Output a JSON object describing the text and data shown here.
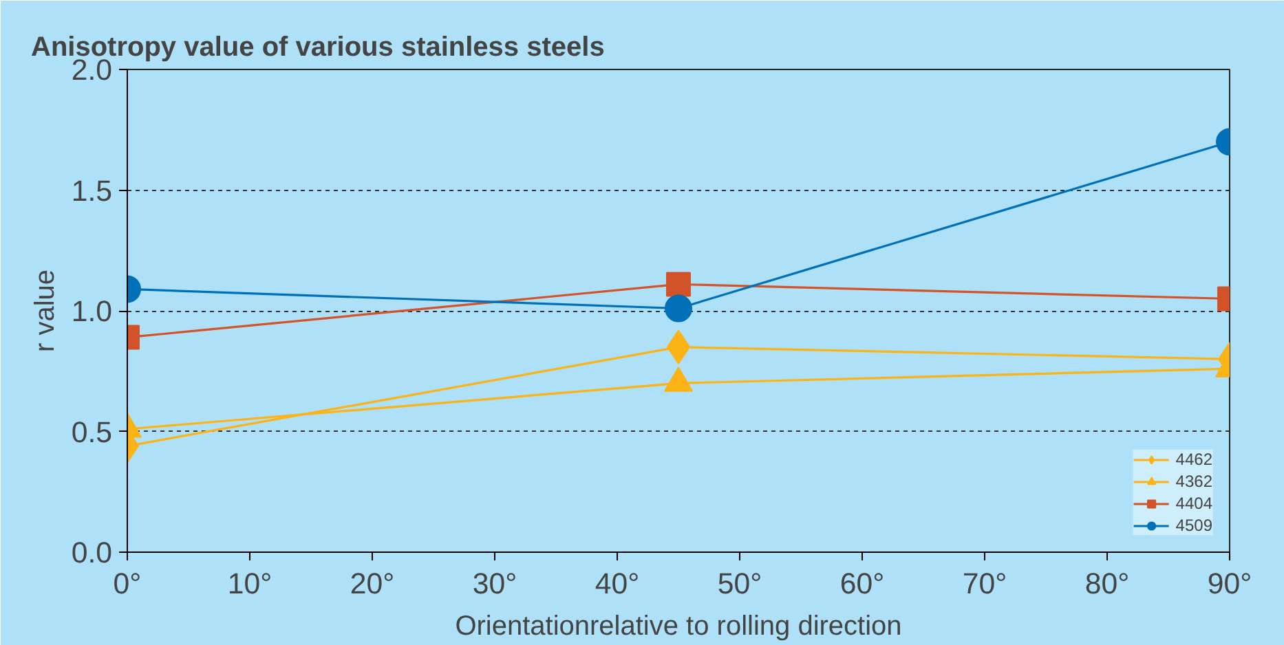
{
  "chart_data": {
    "type": "line",
    "title": "Anisotropy value of various stainless steels",
    "xlabel": "Orientationrelative to rolling direction",
    "ylabel": "r value",
    "x": [
      0,
      45,
      90
    ],
    "series": [
      {
        "name": "4462",
        "color": "#fbb316",
        "marker": "diamond",
        "values": [
          0.44,
          0.85,
          0.8
        ]
      },
      {
        "name": "4362",
        "color": "#fbb316",
        "marker": "triangle",
        "values": [
          0.51,
          0.7,
          0.76
        ]
      },
      {
        "name": "4404",
        "color": "#d2522a",
        "marker": "square",
        "values": [
          0.89,
          1.11,
          1.05
        ]
      },
      {
        "name": "4509",
        "color": "#0070b8",
        "marker": "circle",
        "values": [
          1.09,
          1.01,
          1.7
        ]
      }
    ],
    "xlim": [
      0,
      90
    ],
    "xticks": [
      {
        "value": 0,
        "label": "0°"
      },
      {
        "value": 10,
        "label": "10°"
      },
      {
        "value": 20,
        "label": "20°"
      },
      {
        "value": 30,
        "label": "30°"
      },
      {
        "value": 40,
        "label": "40°"
      },
      {
        "value": 50,
        "label": "50°"
      },
      {
        "value": 60,
        "label": "60°"
      },
      {
        "value": 70,
        "label": "70°"
      },
      {
        "value": 80,
        "label": "80°"
      },
      {
        "value": 90,
        "label": "90°"
      }
    ],
    "ylim": [
      0,
      2.0
    ],
    "yticks": [
      {
        "value": 0,
        "label": "0.0"
      },
      {
        "value": 0.5,
        "label": "0.5"
      },
      {
        "value": 1.0,
        "label": "1.0"
      },
      {
        "value": 1.5,
        "label": "1.5"
      },
      {
        "value": 2.0,
        "label": "2.0"
      }
    ],
    "grid": "y",
    "legend": "bottom right",
    "line_style": "solid"
  }
}
